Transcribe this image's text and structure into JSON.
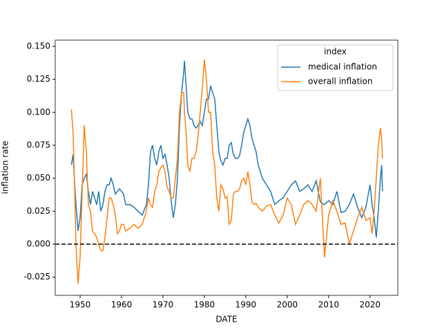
{
  "chart_data": {
    "type": "line",
    "x_label": "DATE",
    "y_label": "inflation rate",
    "legend_title": "index",
    "legend_loc": "upper right",
    "xlim": [
      1944.0,
      2026.7
    ],
    "ylim": [
      -0.0388,
      0.1547
    ],
    "xticks": [
      1950,
      1960,
      1970,
      1980,
      1990,
      2000,
      2010,
      2020
    ],
    "yticks": [
      -0.025,
      {
        "value": 0,
        "label": "0.000"
      },
      0.025,
      {
        "value": 0.05,
        "label": "0.050"
      },
      0.075,
      {
        "value": 0.1,
        "label": "0.100"
      },
      0.125,
      {
        "value": 0.15,
        "label": "0.150"
      }
    ],
    "hline": 0,
    "x": [
      1947.9,
      1948.3,
      1948.7,
      1949,
      1949.5,
      1950,
      1950.5,
      1951,
      1951.5,
      1952,
      1952.5,
      1953,
      1953.5,
      1954,
      1954.5,
      1955,
      1955.5,
      1956,
      1956.5,
      1957,
      1957.5,
      1958,
      1958.5,
      1959,
      1959.5,
      1960,
      1960.5,
      1961,
      1962,
      1963,
      1964,
      1965,
      1966,
      1966.5,
      1967,
      1967.5,
      1968,
      1968.5,
      1969,
      1969.5,
      1970,
      1970.5,
      1971,
      1971.5,
      1972,
      1972.5,
      1973,
      1973.5,
      1974,
      1974.5,
      1975,
      1975.2,
      1975.6,
      1976,
      1976.5,
      1977,
      1977.5,
      1978,
      1978.5,
      1979,
      1979.5,
      1980,
      1980.5,
      1981,
      1981.5,
      1982,
      1982.5,
      1983,
      1983.5,
      1984,
      1984.5,
      1985,
      1985.5,
      1986,
      1986.5,
      1987,
      1987.5,
      1988,
      1988.5,
      1989,
      1989.5,
      1990,
      1990.5,
      1991,
      1991.5,
      1992,
      1992.5,
      1993,
      1994,
      1995,
      1996,
      1997,
      1998,
      1999,
      2000,
      2001,
      2002,
      2003,
      2004,
      2005,
      2006,
      2007,
      2008,
      2009,
      2010,
      2011,
      2012,
      2013,
      2014,
      2015,
      2016,
      2017,
      2018,
      2019,
      2020,
      2020.5,
      2021,
      2021.5,
      2022,
      2022.5,
      2022.8,
      2023
    ],
    "series": [
      {
        "name": "medical inflation",
        "color": "#1f77b4",
        "values": [
          0.06,
          0.068,
          0.045,
          0.03,
          0.01,
          0.02,
          0.045,
          0.05,
          0.053,
          0.04,
          0.03,
          0.04,
          0.035,
          0.03,
          0.04,
          0.025,
          0.03,
          0.04,
          0.045,
          0.045,
          0.05,
          0.045,
          0.038,
          0.04,
          0.042,
          0.04,
          0.038,
          0.03,
          0.03,
          0.028,
          0.025,
          0.022,
          0.03,
          0.045,
          0.07,
          0.075,
          0.065,
          0.06,
          0.07,
          0.075,
          0.065,
          0.068,
          0.06,
          0.05,
          0.032,
          0.02,
          0.03,
          0.05,
          0.09,
          0.115,
          0.13,
          0.139,
          0.12,
          0.1,
          0.095,
          0.095,
          0.09,
          0.088,
          0.09,
          0.093,
          0.09,
          0.1,
          0.11,
          0.11,
          0.12,
          0.115,
          0.11,
          0.09,
          0.07,
          0.063,
          0.06,
          0.065,
          0.065,
          0.075,
          0.077,
          0.068,
          0.065,
          0.065,
          0.067,
          0.075,
          0.085,
          0.09,
          0.095,
          0.09,
          0.08,
          0.075,
          0.07,
          0.06,
          0.05,
          0.045,
          0.04,
          0.03,
          0.033,
          0.035,
          0.04,
          0.045,
          0.048,
          0.04,
          0.042,
          0.045,
          0.04,
          0.048,
          0.032,
          0.03,
          0.033,
          0.03,
          0.04,
          0.024,
          0.025,
          0.03,
          0.038,
          0.028,
          0.02,
          0.028,
          0.045,
          0.03,
          0.02,
          0.005,
          0.025,
          0.05,
          0.06,
          0.04
        ]
      },
      {
        "name": "overall inflation",
        "color": "#ff7f0e",
        "values": [
          0.102,
          0.085,
          0.04,
          0.0,
          -0.03,
          -0.01,
          0.04,
          0.09,
          0.07,
          0.03,
          0.025,
          0.01,
          0.008,
          0.005,
          0.0,
          -0.005,
          -0.005,
          0.005,
          0.02,
          0.035,
          0.035,
          0.03,
          0.022,
          0.008,
          0.01,
          0.015,
          0.015,
          0.01,
          0.012,
          0.015,
          0.012,
          0.015,
          0.025,
          0.035,
          0.03,
          0.028,
          0.04,
          0.045,
          0.055,
          0.058,
          0.06,
          0.055,
          0.043,
          0.04,
          0.035,
          0.035,
          0.05,
          0.065,
          0.1,
          0.115,
          0.115,
          0.1,
          0.085,
          0.06,
          0.055,
          0.065,
          0.065,
          0.07,
          0.082,
          0.1,
          0.118,
          0.14,
          0.125,
          0.1,
          0.1,
          0.07,
          0.06,
          0.035,
          0.025,
          0.045,
          0.042,
          0.035,
          0.036,
          0.015,
          0.018,
          0.038,
          0.04,
          0.04,
          0.042,
          0.048,
          0.05,
          0.045,
          0.055,
          0.045,
          0.032,
          0.03,
          0.031,
          0.028,
          0.025,
          0.029,
          0.03,
          0.022,
          0.016,
          0.022,
          0.035,
          0.03,
          0.015,
          0.022,
          0.03,
          0.033,
          0.03,
          0.025,
          0.05,
          -0.01,
          0.022,
          0.033,
          0.025,
          0.015,
          0.016,
          0.0,
          0.01,
          0.02,
          0.028,
          0.018,
          0.02,
          0.008,
          0.025,
          0.05,
          0.075,
          0.088,
          0.08,
          0.065
        ]
      }
    ]
  }
}
